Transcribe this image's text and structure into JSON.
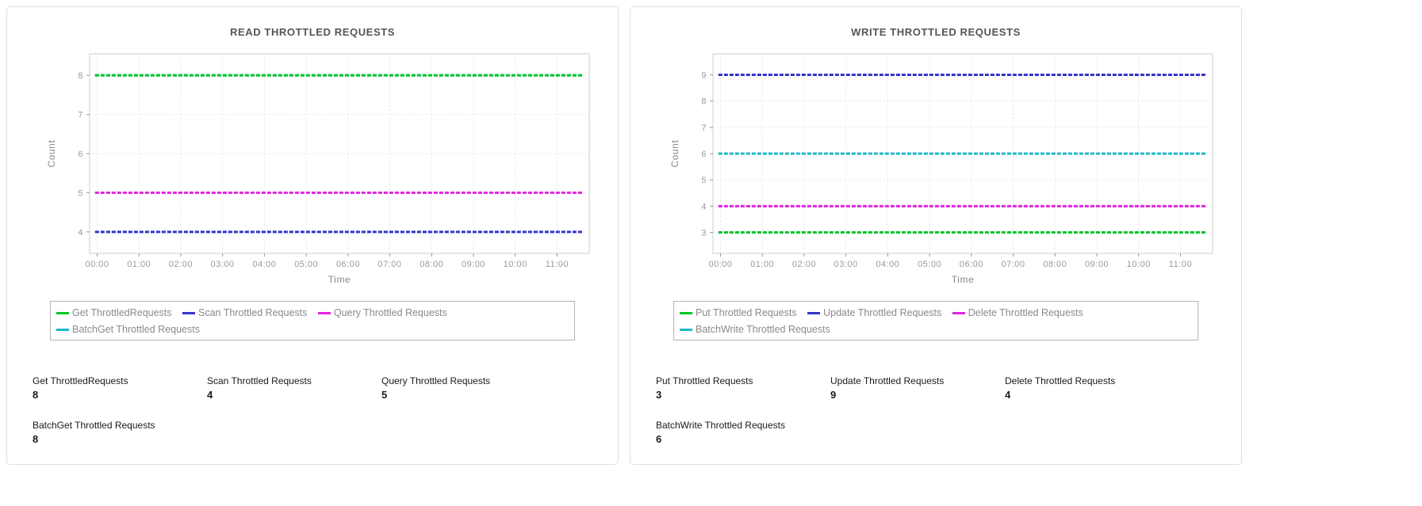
{
  "chart_data": [
    {
      "type": "line",
      "title": "READ THROTTLED REQUESTS",
      "xlabel": "Time",
      "ylabel": "Count",
      "x_ticks": [
        "00:00",
        "01:00",
        "02:00",
        "03:00",
        "04:00",
        "05:00",
        "06:00",
        "07:00",
        "08:00",
        "09:00",
        "10:00",
        "11:00"
      ],
      "y_ticks": [
        4,
        5,
        6,
        7,
        8
      ],
      "ylim": [
        3.45,
        8.55
      ],
      "grid": "dashed",
      "legend_position": "bottom",
      "series": [
        {
          "name": "Get ThrottledRequests",
          "color": "#00c525",
          "value": 8
        },
        {
          "name": "Scan Throttled Requests",
          "color": "#3333cc",
          "value": 4
        },
        {
          "name": "Query Throttled Requests",
          "color": "#e222e2",
          "value": 5
        },
        {
          "name": "BatchGet Throttled Requests",
          "color": "#1fb6c9",
          "value": 8
        }
      ]
    },
    {
      "type": "line",
      "title": "WRITE THROTTLED REQUESTS",
      "xlabel": "Time",
      "ylabel": "Count",
      "x_ticks": [
        "00:00",
        "01:00",
        "02:00",
        "03:00",
        "04:00",
        "05:00",
        "06:00",
        "07:00",
        "08:00",
        "09:00",
        "10:00",
        "11:00"
      ],
      "y_ticks": [
        3,
        4,
        5,
        6,
        7,
        8,
        9
      ],
      "ylim": [
        2.2,
        9.8
      ],
      "grid": "dashed",
      "legend_position": "bottom",
      "series": [
        {
          "name": "Put Throttled Requests",
          "color": "#00c525",
          "value": 3
        },
        {
          "name": "Update Throttled Requests",
          "color": "#3333cc",
          "value": 9
        },
        {
          "name": "Delete Throttled Requests",
          "color": "#e222e2",
          "value": 4
        },
        {
          "name": "BatchWrite Throttled Requests",
          "color": "#1fb6c9",
          "value": 6
        }
      ]
    }
  ],
  "panels": [
    {
      "stats": [
        {
          "label": "Get ThrottledRequests",
          "value": "8"
        },
        {
          "label": "Scan Throttled Requests",
          "value": "4"
        },
        {
          "label": "Query Throttled Requests",
          "value": "5"
        },
        {
          "label": "BatchGet Throttled Requests",
          "value": "8"
        }
      ]
    },
    {
      "stats": [
        {
          "label": "Put Throttled Requests",
          "value": "3"
        },
        {
          "label": "Update Throttled Requests",
          "value": "9"
        },
        {
          "label": "Delete Throttled Requests",
          "value": "4"
        },
        {
          "label": "BatchWrite Throttled Requests",
          "value": "6"
        }
      ]
    }
  ]
}
